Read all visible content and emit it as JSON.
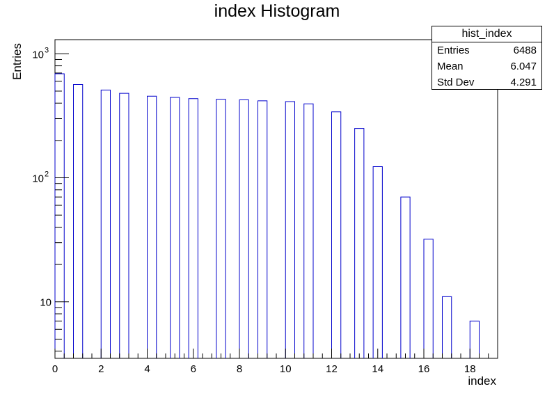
{
  "chart_data": {
    "type": "bar",
    "title": "index Histogram",
    "xlabel": "index",
    "ylabel": "Entries",
    "y_scale": "log",
    "xlim": [
      0,
      19.2
    ],
    "ylim": [
      3.5,
      1300
    ],
    "bar_color": "#0000cc",
    "bin_width": 0.4,
    "x_ticks": [
      "0",
      "2",
      "4",
      "6",
      "8",
      "10",
      "12",
      "14",
      "16",
      "18"
    ],
    "y_ticks": [
      {
        "base": "10",
        "exp": ""
      },
      {
        "base": "10",
        "exp": "2"
      },
      {
        "base": "10",
        "exp": "3"
      }
    ],
    "bars": [
      {
        "x": 0.2,
        "value": 690
      },
      {
        "x": 1.0,
        "value": 565
      },
      {
        "x": 2.2,
        "value": 510
      },
      {
        "x": 3.0,
        "value": 480
      },
      {
        "x": 4.2,
        "value": 455
      },
      {
        "x": 5.2,
        "value": 445
      },
      {
        "x": 6.0,
        "value": 435
      },
      {
        "x": 7.2,
        "value": 430
      },
      {
        "x": 8.2,
        "value": 425
      },
      {
        "x": 9.0,
        "value": 418
      },
      {
        "x": 10.2,
        "value": 412
      },
      {
        "x": 11.0,
        "value": 395
      },
      {
        "x": 12.2,
        "value": 340
      },
      {
        "x": 13.2,
        "value": 250
      },
      {
        "x": 14.0,
        "value": 123
      },
      {
        "x": 15.2,
        "value": 70
      },
      {
        "x": 16.2,
        "value": 32
      },
      {
        "x": 17.0,
        "value": 11
      },
      {
        "x": 18.2,
        "value": 7
      }
    ]
  },
  "stats": {
    "name": "hist_index",
    "rows": [
      {
        "label": "Entries",
        "value": "6488"
      },
      {
        "label": "Mean",
        "value": "6.047"
      },
      {
        "label": "Std Dev",
        "value": "4.291"
      }
    ]
  }
}
